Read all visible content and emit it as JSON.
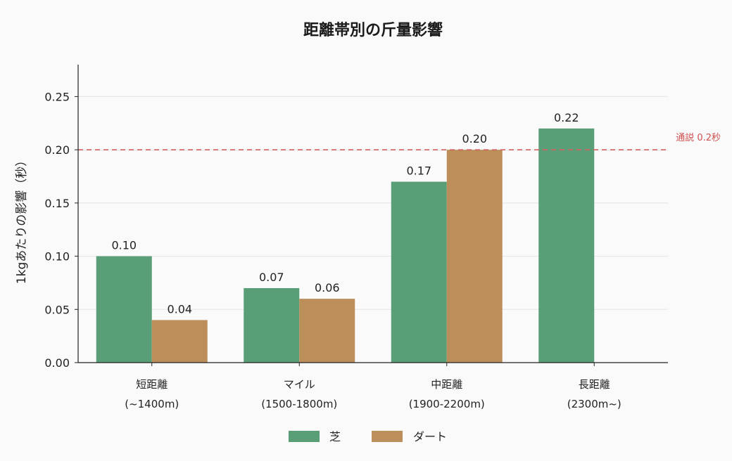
{
  "chart_data": {
    "type": "bar",
    "title": "距離帯別の斤量影響",
    "ylabel": "1kgあたりの影響（秒）",
    "xlabel": "",
    "ylim": [
      0,
      0.28
    ],
    "yticks": [
      "0.00",
      "0.05",
      "0.10",
      "0.15",
      "0.20",
      "0.25"
    ],
    "categories": [
      [
        "短距離",
        "(~1400m)"
      ],
      [
        "マイル",
        "(1500-1800m)"
      ],
      [
        "中距離",
        "(1900-2200m)"
      ],
      [
        "長距離",
        "(2300m~)"
      ]
    ],
    "series": [
      {
        "name": "芝",
        "color": "#5a9e77",
        "values": [
          0.1,
          0.07,
          0.17,
          0.22
        ],
        "labels": [
          "0.10",
          "0.07",
          "0.17",
          "0.22"
        ]
      },
      {
        "name": "ダート",
        "color": "#bc8e5a",
        "values": [
          0.04,
          0.06,
          0.2,
          null
        ],
        "labels": [
          "0.04",
          "0.06",
          "0.20",
          ""
        ]
      }
    ],
    "reference_line": {
      "value": 0.2,
      "label": "通説 0.2秒",
      "color": "#d06060",
      "style": "dashed"
    },
    "grid": "horizontal",
    "legend_position": "bottom-center"
  }
}
